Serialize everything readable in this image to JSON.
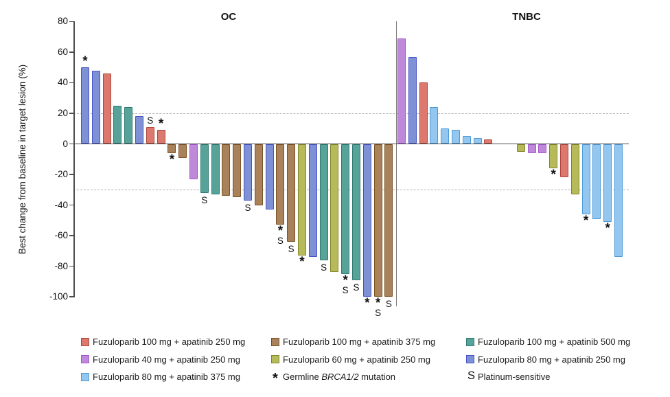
{
  "chart_data": {
    "type": "bar",
    "title": "",
    "ylabel": "Best change from baseline in target lesion (%)",
    "ylim": [
      -100,
      80
    ],
    "yticks": [
      80,
      60,
      40,
      20,
      0,
      -20,
      -40,
      -60,
      -80,
      -100
    ],
    "reference_lines": [
      20,
      -30
    ],
    "grid": "off",
    "legend_position": "bottom",
    "colors": {
      "red": {
        "fill": "#DC786E",
        "stroke": "#AE453C"
      },
      "brown": {
        "fill": "#A9815A",
        "stroke": "#7A5222"
      },
      "teal": {
        "fill": "#57A39A",
        "stroke": "#2F7B72"
      },
      "orchid": {
        "fill": "#BF89DA",
        "stroke": "#A456CE"
      },
      "olive": {
        "fill": "#B6BA58",
        "stroke": "#81862C"
      },
      "slate": {
        "fill": "#7E91D5",
        "stroke": "#4652C5"
      },
      "lightblue": {
        "fill": "#94C7EF",
        "stroke": "#4E9AD6"
      }
    },
    "panels": [
      {
        "title": "OC",
        "bars": [
          {
            "v": 50,
            "c": "slate",
            "sym": [
              "*"
            ]
          },
          {
            "v": 48,
            "c": "slate",
            "sym": []
          },
          {
            "v": 46,
            "c": "red",
            "sym": []
          },
          {
            "v": 25,
            "c": "teal",
            "sym": []
          },
          {
            "v": 24,
            "c": "teal",
            "sym": []
          },
          {
            "v": 18,
            "c": "slate",
            "sym": []
          },
          {
            "v": 11,
            "c": "red",
            "sym": [
              "S"
            ]
          },
          {
            "v": 9,
            "c": "red",
            "sym": [
              "*"
            ]
          },
          {
            "v": -6,
            "c": "brown",
            "sym": [
              "*"
            ]
          },
          {
            "v": -9,
            "c": "brown",
            "sym": []
          },
          {
            "v": -23,
            "c": "orchid",
            "sym": []
          },
          {
            "v": -32,
            "c": "teal",
            "sym": [
              "S"
            ]
          },
          {
            "v": -33,
            "c": "teal",
            "sym": []
          },
          {
            "v": -34,
            "c": "brown",
            "sym": []
          },
          {
            "v": -35,
            "c": "brown",
            "sym": []
          },
          {
            "v": -37,
            "c": "slate",
            "sym": [
              "S"
            ]
          },
          {
            "v": -40,
            "c": "brown",
            "sym": []
          },
          {
            "v": -43,
            "c": "slate",
            "sym": []
          },
          {
            "v": -53,
            "c": "brown",
            "sym": [
              "*",
              "S"
            ]
          },
          {
            "v": -64,
            "c": "brown",
            "sym": [
              "S"
            ]
          },
          {
            "v": -73,
            "c": "olive",
            "sym": [
              "*"
            ]
          },
          {
            "v": -74,
            "c": "slate",
            "sym": []
          },
          {
            "v": -76,
            "c": "teal",
            "sym": [
              "S"
            ]
          },
          {
            "v": -84,
            "c": "olive",
            "sym": []
          },
          {
            "v": -85,
            "c": "teal",
            "sym": [
              "*",
              "S"
            ]
          },
          {
            "v": -89,
            "c": "teal",
            "sym": [
              "S"
            ]
          },
          {
            "v": -100,
            "c": "slate",
            "sym": [
              "*"
            ]
          },
          {
            "v": -100,
            "c": "brown",
            "sym": [
              "*",
              "S"
            ]
          },
          {
            "v": -100,
            "c": "brown",
            "sym": [
              "S"
            ]
          }
        ]
      },
      {
        "title": "TNBC",
        "bars": [
          {
            "v": 69,
            "c": "orchid",
            "sym": []
          },
          {
            "v": 57,
            "c": "slate",
            "sym": []
          },
          {
            "v": 40,
            "c": "red",
            "sym": []
          },
          {
            "v": 24,
            "c": "lightblue",
            "sym": []
          },
          {
            "v": 10,
            "c": "lightblue",
            "sym": []
          },
          {
            "v": 9,
            "c": "lightblue",
            "sym": []
          },
          {
            "v": 5,
            "c": "lightblue",
            "sym": []
          },
          {
            "v": 4,
            "c": "lightblue",
            "sym": []
          },
          {
            "v": 3,
            "c": "red",
            "sym": []
          },
          {
            "v": 0,
            "c": "",
            "sym": []
          },
          {
            "v": 0,
            "c": "",
            "sym": []
          },
          {
            "v": -5,
            "c": "olive",
            "sym": []
          },
          {
            "v": -6,
            "c": "orchid",
            "sym": []
          },
          {
            "v": -6,
            "c": "orchid",
            "sym": []
          },
          {
            "v": -16,
            "c": "olive",
            "sym": [
              "*"
            ]
          },
          {
            "v": -22,
            "c": "red",
            "sym": []
          },
          {
            "v": -33,
            "c": "olive",
            "sym": []
          },
          {
            "v": -46,
            "c": "lightblue",
            "sym": [
              "*"
            ]
          },
          {
            "v": -49,
            "c": "lightblue",
            "sym": []
          },
          {
            "v": -51,
            "c": "lightblue",
            "sym": [
              "*"
            ]
          },
          {
            "v": -74,
            "c": "lightblue",
            "sym": []
          }
        ]
      }
    ]
  },
  "legend": {
    "columns": [
      {
        "items": [
          {
            "type": "color",
            "color": "red",
            "label": "Fuzuloparib 100 mg + apatinib 250 mg"
          },
          {
            "type": "color",
            "color": "orchid",
            "label": "Fuzuloparib 40 mg + apatinib 250 mg"
          },
          {
            "type": "color",
            "color": "lightblue",
            "label": "Fuzuloparib 80 mg + apatinib 375 mg"
          }
        ]
      },
      {
        "items": [
          {
            "type": "color",
            "color": "brown",
            "label": "Fuzuloparib 100 mg + apatinib 375 mg"
          },
          {
            "type": "color",
            "color": "olive",
            "label": "Fuzuloparib 60 mg + apatinib 250 mg"
          },
          {
            "type": "symbol",
            "glyph": "*",
            "pre": "Germline ",
            "italic": "BRCA1/2",
            "post": " mutation"
          }
        ]
      },
      {
        "items": [
          {
            "type": "color",
            "color": "teal",
            "label": "Fuzuloparib 100 mg + apatinib 500 mg"
          },
          {
            "type": "color",
            "color": "slate",
            "label": "Fuzuloparib 80 mg + apatinib 250 mg"
          },
          {
            "type": "symbol",
            "glyph": "S",
            "pre": "Platinum-sensitive",
            "italic": "",
            "post": ""
          }
        ]
      }
    ]
  }
}
